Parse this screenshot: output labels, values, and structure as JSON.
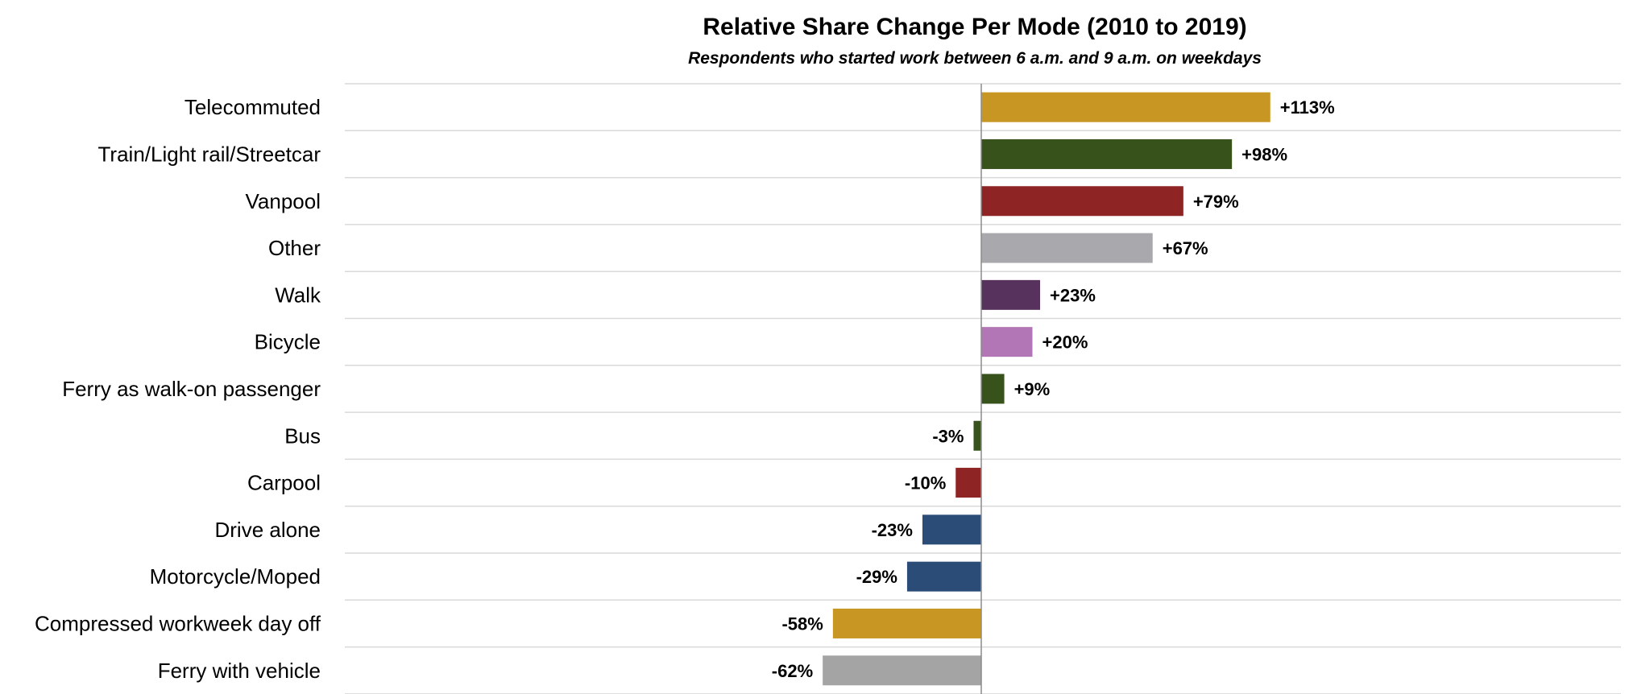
{
  "chart_data": {
    "type": "bar",
    "orientation": "horizontal",
    "title": "Relative Share Change Per Mode (2010 to 2019)",
    "subtitle": "Respondents who started work between 6 a.m. and 9 a.m. on weekdays",
    "xlabel": "",
    "ylabel": "",
    "xlim": [
      -113,
      122
    ],
    "grid": true,
    "legend": "none",
    "categories": [
      "Telecommuted",
      "Train/Light rail/Streetcar",
      "Vanpool",
      "Other",
      "Walk",
      "Bicycle",
      "Ferry as walk-on passenger",
      "Bus",
      "Carpool",
      "Drive alone",
      "Motorcycle/Moped",
      "Compressed workweek day off",
      "Ferry with vehicle"
    ],
    "values": [
      113,
      98,
      79,
      67,
      23,
      20,
      9,
      -3,
      -10,
      -23,
      -29,
      -58,
      -62
    ],
    "value_labels": [
      "+113%",
      "+98%",
      "+79%",
      "+67%",
      "+23%",
      "+20%",
      "+9%",
      "-3%",
      "-10%",
      "-23%",
      "-29%",
      "-58%",
      "-62%"
    ],
    "colors": [
      "#c89622",
      "#38521c",
      "#8e2424",
      "#a9a9ad",
      "#57325c",
      "#b276b6",
      "#38521c",
      "#38521c",
      "#8e2424",
      "#2c4c78",
      "#2c4c78",
      "#c89622",
      "#a4a4a4"
    ]
  }
}
